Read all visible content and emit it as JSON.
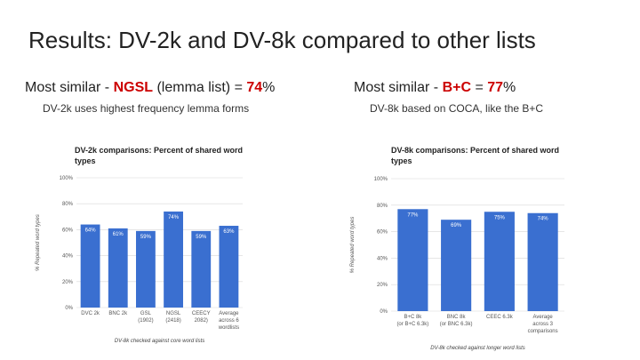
{
  "slide": {
    "title": "Results: DV-2k and DV-8k compared to other lists",
    "left": {
      "heading_prefix": "Most similar - ",
      "heading_highlight": "NGSL",
      "heading_middle": " (lemma list) = ",
      "heading_value": "74",
      "heading_suffix": "%",
      "subheading": "DV-2k uses highest frequency lemma forms"
    },
    "right": {
      "heading_prefix": "Most similar - ",
      "heading_highlight": "B+C",
      "heading_middle": " = ",
      "heading_value": "77",
      "heading_suffix": "%",
      "subheading": "DV-8k based on COCA, like the B+C"
    }
  },
  "colors": {
    "bar": "#3a6fd0",
    "highlight": "#cc0000",
    "grid": "#d8d8d8"
  },
  "chart_data": [
    {
      "type": "bar",
      "title_lines": [
        "DV-2k comparisons: Percent of shared word",
        "types"
      ],
      "ylabel": "% Repeated word types",
      "xlabel": "DV-8k checked against core word lists",
      "ylim": [
        0,
        100
      ],
      "yticks": [
        "0%",
        "20%",
        "40%",
        "60%",
        "80%",
        "100%"
      ],
      "categories": [
        [
          "DVC 2k"
        ],
        [
          "BNC 2k"
        ],
        [
          "GSL",
          "(1902)"
        ],
        [
          "NGSL",
          "(2418)"
        ],
        [
          "CEECY",
          "2082)"
        ],
        [
          "Average",
          "across 6",
          "wordlists"
        ]
      ],
      "values": [
        64,
        61,
        59,
        74,
        59,
        63
      ],
      "labels": [
        "64%",
        "61%",
        "59%",
        "74%",
        "59%",
        "63%"
      ]
    },
    {
      "type": "bar",
      "title_lines": [
        "DV-8k comparisons: Percent of shared word",
        "types"
      ],
      "ylabel": "% Repeated word types",
      "xlabel": "DV-8k checked against longer word lists",
      "ylim": [
        0,
        100
      ],
      "yticks": [
        "0%",
        "20%",
        "40%",
        "60%",
        "80%",
        "100%"
      ],
      "categories": [
        [
          "B+C 8k",
          "(or B+C 6.3k)"
        ],
        [
          "BNC 8k",
          "(or BNC 6.3k)"
        ],
        [
          "CEEC 6.3k"
        ],
        [
          "Average",
          "across 3",
          "comparisons"
        ]
      ],
      "values": [
        77,
        69,
        75,
        74
      ],
      "labels": [
        "77%",
        "69%",
        "75%",
        "74%"
      ]
    }
  ]
}
